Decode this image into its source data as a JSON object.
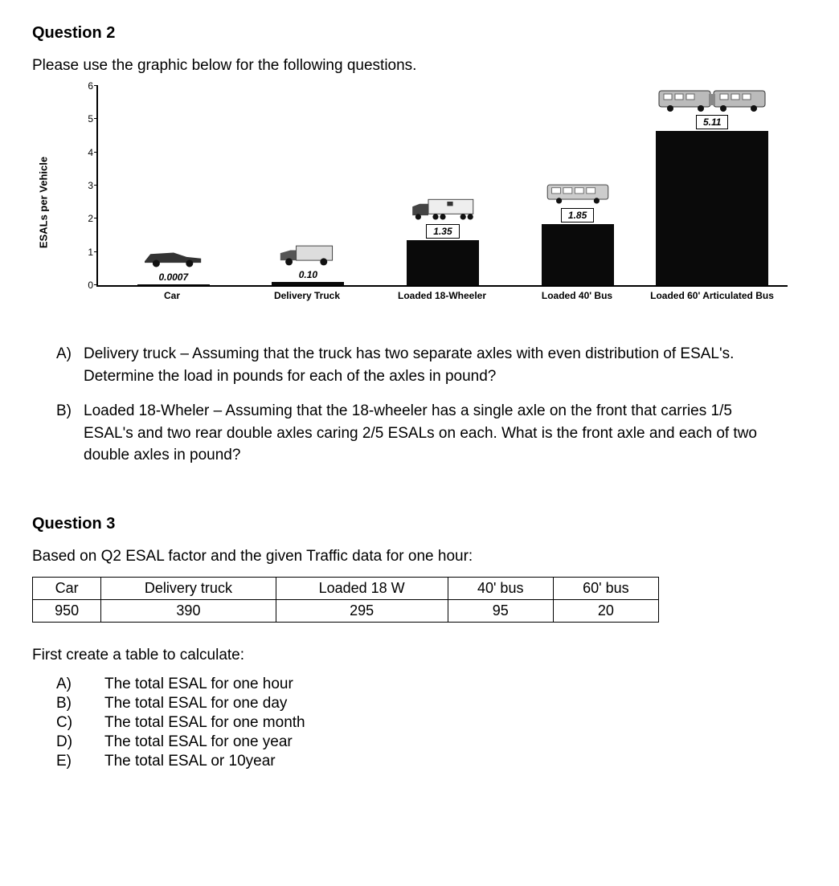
{
  "q2": {
    "title": "Question 2",
    "intro": "Please use the graphic below for the following questions.",
    "chart": {
      "type": "bar",
      "ylabel": "ESALs per Vehicle",
      "ylim": [
        0,
        6
      ],
      "yticks": [
        0,
        1,
        2,
        3,
        4,
        5,
        6
      ],
      "bar_color": "#0a0a0a",
      "background_color": "#ffffff",
      "label_fontsize": 12,
      "categories": [
        {
          "label": "Car",
          "value_text": "0.0007",
          "value": 0.0007,
          "icon": "car",
          "boxed": false
        },
        {
          "label": "Delivery Truck",
          "value_text": "0.10",
          "value": 0.1,
          "icon": "delivery",
          "boxed": false
        },
        {
          "label": "Loaded 18-Wheeler",
          "value_text": "1.35",
          "value": 1.35,
          "icon": "semi",
          "boxed": true
        },
        {
          "label": "Loaded 40' Bus",
          "value_text": "1.85",
          "value": 1.85,
          "icon": "bus40",
          "boxed": true
        },
        {
          "label": "Loaded 60' Articulated Bus",
          "value_text": "5.11",
          "value": 5.11,
          "icon": "bus60",
          "boxed": true
        }
      ]
    },
    "parts": [
      {
        "marker": "A)",
        "text": "Delivery truck – Assuming that the truck has two separate axles with even distribution of ESAL's. Determine the load in pounds for each of the axles in pound?"
      },
      {
        "marker": "B)",
        "text": "Loaded 18-Wheler – Assuming that the 18-wheeler has a single axle on the front that carries 1/5 ESAL's and two rear double axles caring 2/5 ESALs on each. What is the front axle and each of two double axles in pound?"
      }
    ]
  },
  "q3": {
    "title": "Question 3",
    "intro": "Based on Q2 ESAL factor and the given Traffic data for one hour:",
    "table": {
      "columns": [
        "Car",
        "Delivery truck",
        "Loaded 18 W",
        "40' bus",
        "60' bus"
      ],
      "rows": [
        [
          "950",
          "390",
          "295",
          "95",
          "20"
        ]
      ]
    },
    "sub_intro": "First create a table to calculate:",
    "parts": [
      {
        "marker": "A)",
        "text": "The total ESAL for one hour"
      },
      {
        "marker": "B)",
        "text": "The total ESAL for one day"
      },
      {
        "marker": "C)",
        "text": "The total ESAL for one month"
      },
      {
        "marker": "D)",
        "text": "The total ESAL for one year"
      },
      {
        "marker": "E)",
        "text": "The total ESAL or 10year"
      }
    ]
  }
}
